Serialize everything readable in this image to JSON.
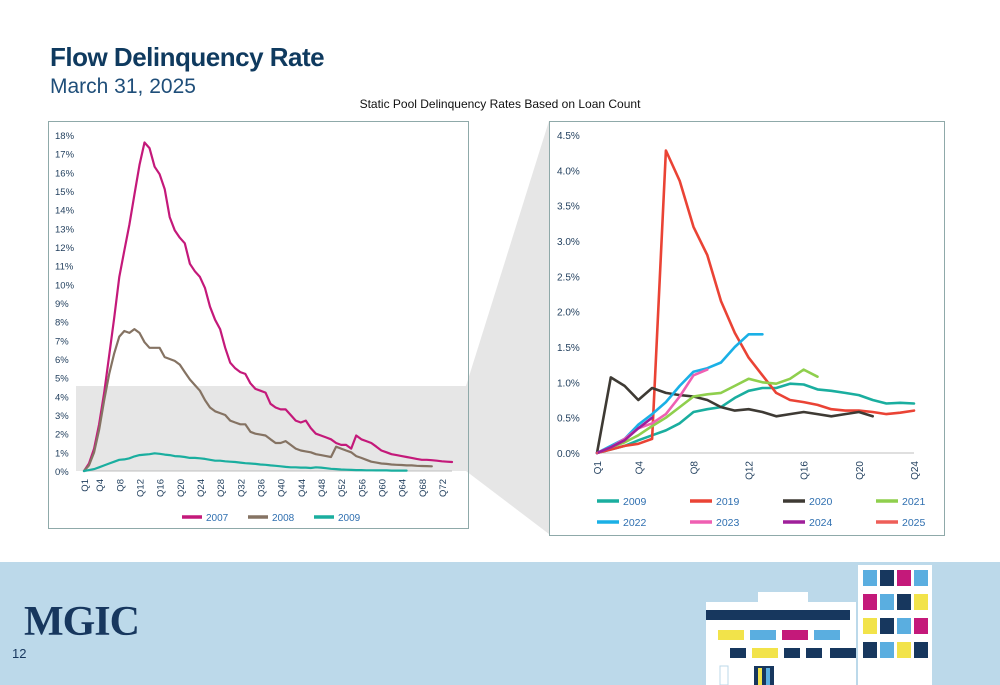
{
  "header": {
    "title": "Flow Delinquency Rate",
    "date": "March 31, 2025",
    "chart_title": "Static Pool Delinquency Rates Based on Loan Count"
  },
  "footer": {
    "logo": "MGIC",
    "page_number": "12"
  },
  "colors": {
    "2007": "#c4197a",
    "2008": "#857363",
    "2009": "#1aae9f",
    "2019": "#ea4335",
    "2020": "#3e3a34",
    "2021": "#8fcf4d",
    "2022": "#1ab0e6",
    "2023": "#ef5fb2",
    "2024": "#9f1f9a",
    "2025": "#ee5e58"
  },
  "chart_data": [
    {
      "type": "line",
      "ylim": [
        0,
        18
      ],
      "y_ticks": [
        "0%",
        "1%",
        "2%",
        "3%",
        "4%",
        "5%",
        "6%",
        "7%",
        "8%",
        "9%",
        "10%",
        "11%",
        "12%",
        "13%",
        "14%",
        "15%",
        "16%",
        "17%",
        "18%"
      ],
      "x_ticks": [
        "Q1",
        "Q4",
        "Q8",
        "Q12",
        "Q16",
        "Q20",
        "Q24",
        "Q28",
        "Q32",
        "Q36",
        "Q40",
        "Q44",
        "Q48",
        "Q52",
        "Q56",
        "Q60",
        "Q64",
        "Q68",
        "Q72"
      ],
      "x_tick_quarters": [
        1,
        4,
        8,
        12,
        16,
        20,
        24,
        28,
        32,
        36,
        40,
        44,
        48,
        52,
        56,
        60,
        64,
        68,
        72
      ],
      "xlim": [
        1,
        74
      ],
      "legend_position": "bottom",
      "grid": false,
      "series": [
        {
          "name": "2007",
          "color": "#c4197a",
          "x": [
            1,
            2,
            3,
            4,
            5,
            6,
            7,
            8,
            9,
            10,
            11,
            12,
            13,
            14,
            15,
            16,
            17,
            18,
            19,
            20,
            21,
            22,
            23,
            24,
            25,
            26,
            27,
            28,
            29,
            30,
            31,
            32,
            33,
            34,
            35,
            36,
            37,
            38,
            39,
            40,
            41,
            42,
            43,
            44,
            45,
            46,
            47,
            48,
            49,
            50,
            51,
            52,
            53,
            54,
            55,
            56,
            57,
            58,
            59,
            60,
            61,
            62,
            63,
            64,
            65,
            66,
            67,
            68,
            69,
            70,
            71,
            72,
            73,
            74
          ],
          "values": [
            0,
            0.4,
            1.2,
            2.5,
            4.2,
            6.2,
            8.2,
            10.4,
            11.8,
            13.2,
            14.8,
            16.4,
            17.6,
            17.3,
            16.3,
            15.9,
            15.1,
            13.6,
            12.9,
            12.5,
            12.2,
            11.1,
            10.7,
            10.4,
            9.8,
            8.8,
            8.1,
            7.6,
            6.6,
            5.8,
            5.5,
            5.3,
            5.2,
            4.7,
            4.4,
            4.3,
            4.2,
            3.6,
            3.4,
            3.3,
            3.3,
            3.0,
            2.7,
            2.6,
            2.7,
            2.3,
            2.0,
            1.9,
            1.8,
            1.7,
            1.5,
            1.4,
            1.4,
            1.2,
            1.9,
            1.7,
            1.6,
            1.5,
            1.3,
            1.1,
            1.0,
            0.9,
            0.85,
            0.8,
            0.75,
            0.7,
            0.65,
            0.6,
            0.6,
            0.58,
            0.55,
            0.52,
            0.5,
            0.48
          ]
        },
        {
          "name": "2008",
          "color": "#857363",
          "x": [
            1,
            2,
            3,
            4,
            5,
            6,
            7,
            8,
            9,
            10,
            11,
            12,
            13,
            14,
            15,
            16,
            17,
            18,
            19,
            20,
            21,
            22,
            23,
            24,
            25,
            26,
            27,
            28,
            29,
            30,
            31,
            32,
            33,
            34,
            35,
            36,
            37,
            38,
            39,
            40,
            41,
            42,
            43,
            44,
            45,
            46,
            47,
            48,
            49,
            50,
            51,
            52,
            53,
            54,
            55,
            56,
            57,
            58,
            59,
            60,
            61,
            62,
            63,
            64,
            65,
            66,
            67,
            68,
            69,
            70
          ],
          "values": [
            0,
            0.3,
            1.0,
            2.2,
            3.8,
            5.2,
            6.3,
            7.2,
            7.5,
            7.4,
            7.6,
            7.4,
            6.9,
            6.6,
            6.6,
            6.6,
            6.1,
            6.0,
            5.9,
            5.7,
            5.3,
            4.9,
            4.6,
            4.3,
            3.8,
            3.4,
            3.2,
            3.1,
            3.0,
            2.7,
            2.6,
            2.5,
            2.5,
            2.1,
            2.0,
            1.95,
            1.9,
            1.7,
            1.5,
            1.5,
            1.6,
            1.4,
            1.2,
            1.1,
            1.05,
            1.0,
            0.9,
            0.85,
            0.8,
            0.75,
            1.3,
            1.2,
            1.1,
            1.0,
            0.8,
            0.7,
            0.6,
            0.5,
            0.45,
            0.4,
            0.38,
            0.35,
            0.33,
            0.32,
            0.3,
            0.3,
            0.28,
            0.27,
            0.26,
            0.25
          ]
        },
        {
          "name": "2009",
          "color": "#1aae9f",
          "x": [
            1,
            2,
            3,
            4,
            5,
            6,
            7,
            8,
            9,
            10,
            11,
            12,
            13,
            14,
            15,
            16,
            17,
            18,
            19,
            20,
            21,
            22,
            23,
            24,
            25,
            26,
            27,
            28,
            29,
            30,
            31,
            32,
            33,
            34,
            35,
            36,
            37,
            38,
            39,
            40,
            41,
            42,
            43,
            44,
            45,
            46,
            47,
            48,
            49,
            50,
            51,
            52,
            53,
            54,
            55,
            56,
            57,
            58,
            59,
            60,
            61,
            62,
            63,
            64,
            65
          ],
          "values": [
            0,
            0.05,
            0.1,
            0.2,
            0.3,
            0.4,
            0.5,
            0.6,
            0.62,
            0.68,
            0.78,
            0.85,
            0.88,
            0.9,
            0.95,
            0.92,
            0.88,
            0.85,
            0.8,
            0.78,
            0.75,
            0.7,
            0.7,
            0.68,
            0.65,
            0.6,
            0.55,
            0.55,
            0.52,
            0.5,
            0.48,
            0.45,
            0.42,
            0.4,
            0.38,
            0.35,
            0.33,
            0.3,
            0.28,
            0.25,
            0.22,
            0.2,
            0.2,
            0.18,
            0.18,
            0.16,
            0.2,
            0.18,
            0.15,
            0.12,
            0.1,
            0.08,
            0.07,
            0.06,
            0.05,
            0.05,
            0.04,
            0.04,
            0.03,
            0.03,
            0.03,
            0.02,
            0.02,
            0.02,
            0.02
          ]
        }
      ]
    },
    {
      "type": "line",
      "ylim": [
        0,
        4.5
      ],
      "y_ticks": [
        "0.0%",
        "0.5%",
        "1.0%",
        "1.5%",
        "2.0%",
        "2.5%",
        "3.0%",
        "3.5%",
        "4.0%",
        "4.5%"
      ],
      "x_ticks": [
        "Q1",
        "Q4",
        "Q8",
        "Q12",
        "Q16",
        "Q20",
        "Q24"
      ],
      "x_tick_quarters": [
        1,
        4,
        8,
        12,
        16,
        20,
        24
      ],
      "xlim": [
        1,
        24
      ],
      "legend_position": "bottom",
      "grid": false,
      "series": [
        {
          "name": "2009",
          "color": "#1aae9f",
          "x": [
            1,
            2,
            3,
            4,
            5,
            6,
            7,
            8,
            9,
            10,
            11,
            12,
            13,
            14,
            15,
            16,
            17,
            18,
            19,
            20,
            21,
            22,
            23,
            24
          ],
          "values": [
            0,
            0.05,
            0.1,
            0.18,
            0.25,
            0.32,
            0.42,
            0.58,
            0.62,
            0.65,
            0.78,
            0.88,
            0.92,
            0.92,
            0.98,
            0.97,
            0.9,
            0.88,
            0.85,
            0.82,
            0.75,
            0.7,
            0.71,
            0.7
          ]
        },
        {
          "name": "2019",
          "color": "#ea4335",
          "x": [
            1,
            2,
            3,
            4,
            5,
            6,
            7,
            8,
            9,
            10,
            11,
            12,
            13,
            14,
            15,
            16,
            17,
            18,
            19,
            20,
            21,
            22,
            23,
            24
          ],
          "values": [
            0,
            0.05,
            0.1,
            0.13,
            0.2,
            4.28,
            3.85,
            3.2,
            2.8,
            2.15,
            1.7,
            1.35,
            1.1,
            0.85,
            0.75,
            0.72,
            0.68,
            0.62,
            0.6,
            0.6,
            0.58,
            0.55,
            0.57,
            0.6
          ]
        },
        {
          "name": "2020",
          "color": "#3e3a34",
          "x": [
            1,
            2,
            3,
            4,
            5,
            6,
            7,
            8,
            9,
            10,
            11,
            12,
            13,
            14,
            15,
            16,
            17,
            18,
            19,
            20,
            21
          ],
          "values": [
            0,
            1.07,
            0.95,
            0.75,
            0.92,
            0.85,
            0.82,
            0.8,
            0.75,
            0.65,
            0.6,
            0.62,
            0.58,
            0.52,
            0.55,
            0.58,
            0.55,
            0.52,
            0.55,
            0.58,
            0.52
          ]
        },
        {
          "name": "2021",
          "color": "#8fcf4d",
          "x": [
            1,
            2,
            3,
            4,
            5,
            6,
            7,
            8,
            9,
            10,
            11,
            12,
            13,
            14,
            15,
            16,
            17
          ],
          "values": [
            0,
            0.08,
            0.15,
            0.25,
            0.38,
            0.5,
            0.65,
            0.8,
            0.83,
            0.85,
            0.95,
            1.05,
            1.0,
            0.98,
            1.05,
            1.18,
            1.08
          ]
        },
        {
          "name": "2022",
          "color": "#1ab0e6",
          "x": [
            1,
            2,
            3,
            4,
            5,
            6,
            7,
            8,
            9,
            10,
            11,
            12,
            13
          ],
          "values": [
            0,
            0.1,
            0.2,
            0.4,
            0.55,
            0.72,
            0.95,
            1.15,
            1.2,
            1.28,
            1.5,
            1.68,
            1.68
          ]
        },
        {
          "name": "2023",
          "color": "#ef5fb2",
          "x": [
            1,
            2,
            3,
            4,
            5,
            6,
            7,
            8,
            9
          ],
          "values": [
            0,
            0.08,
            0.2,
            0.35,
            0.42,
            0.55,
            0.8,
            1.1,
            1.18
          ]
        },
        {
          "name": "2024",
          "color": "#9f1f9a",
          "x": [
            1,
            2,
            3,
            4,
            5
          ],
          "values": [
            0,
            0.08,
            0.18,
            0.35,
            0.5
          ]
        },
        {
          "name": "2025",
          "color": "#ee5e58",
          "x": [
            1
          ],
          "values": [
            0
          ]
        }
      ]
    }
  ]
}
